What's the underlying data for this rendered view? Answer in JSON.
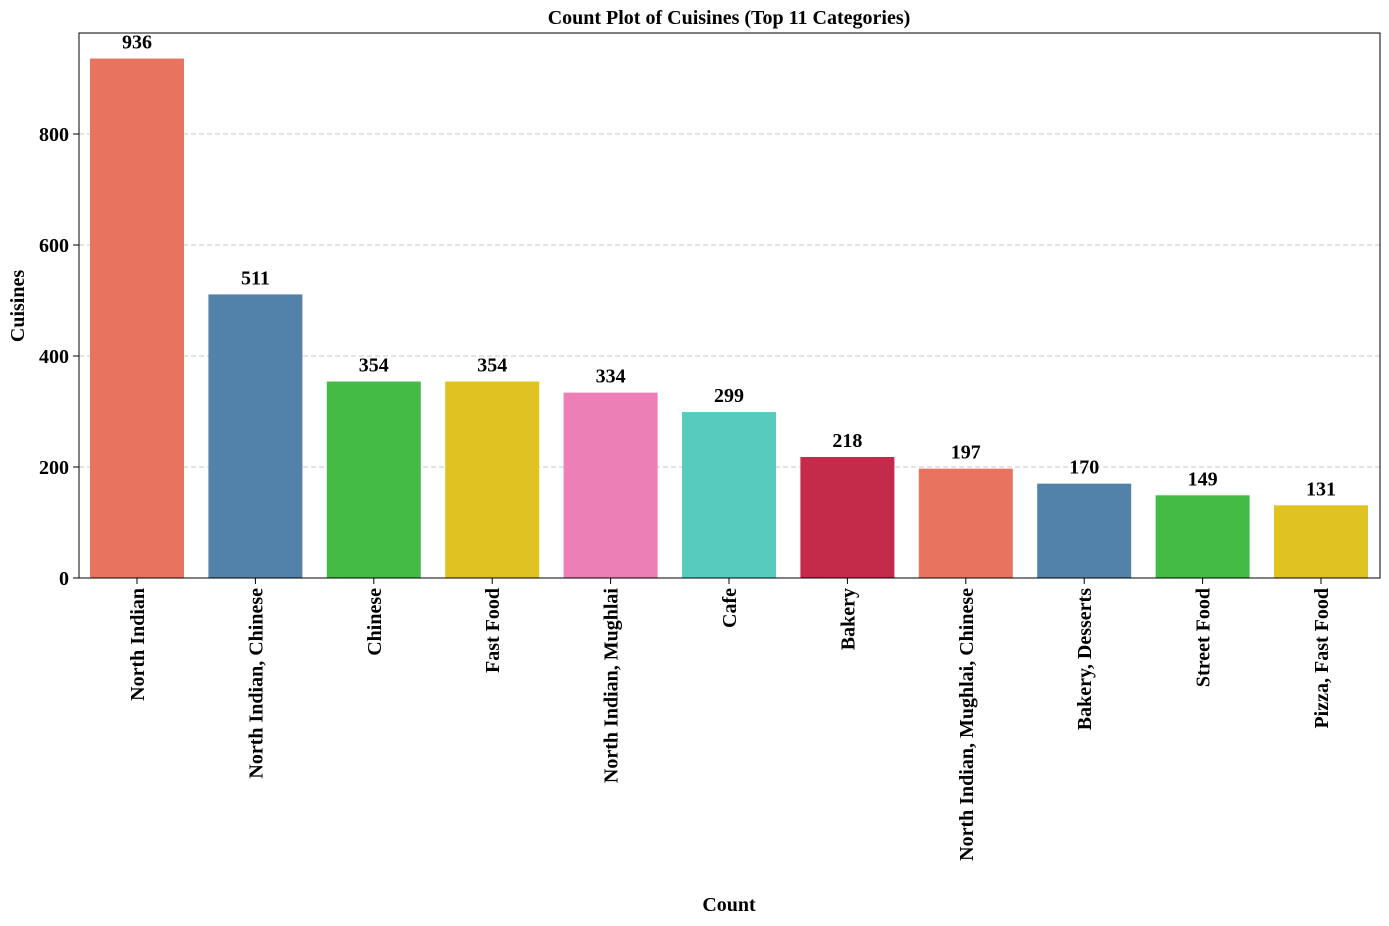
{
  "chart_data": {
    "type": "bar",
    "title": "Count Plot of Cuisines (Top 11 Categories)",
    "xlabel": "Count",
    "ylabel": "Cuisines",
    "categories": [
      "North Indian",
      "North Indian, Chinese",
      "Chinese",
      "Fast Food",
      "North Indian, Mughlai",
      "Cafe",
      "Bakery",
      "North Indian, Mughlai, Chinese",
      "Bakery, Desserts",
      "Street Food",
      "Pizza, Fast Food"
    ],
    "values": [
      936,
      511,
      354,
      354,
      334,
      299,
      218,
      197,
      170,
      149,
      131
    ],
    "data_labels": [
      "936",
      "511",
      "354",
      "354",
      "334",
      "299",
      "218",
      "197",
      "170",
      "149",
      "131"
    ],
    "colors": [
      "#E8735F",
      "#5282A8",
      "#44BB44",
      "#E0C222",
      "#EC7FB5",
      "#56CCBE",
      "#C42A4A",
      "#E8735F",
      "#5282A8",
      "#44BB44",
      "#E0C222"
    ],
    "ylim": [
      0,
      982
    ],
    "yticks": [
      0,
      200,
      400,
      600,
      800
    ],
    "ytick_labels": [
      "0",
      "200",
      "400",
      "600",
      "800"
    ],
    "grid": "y-dashed",
    "legend": "none"
  }
}
